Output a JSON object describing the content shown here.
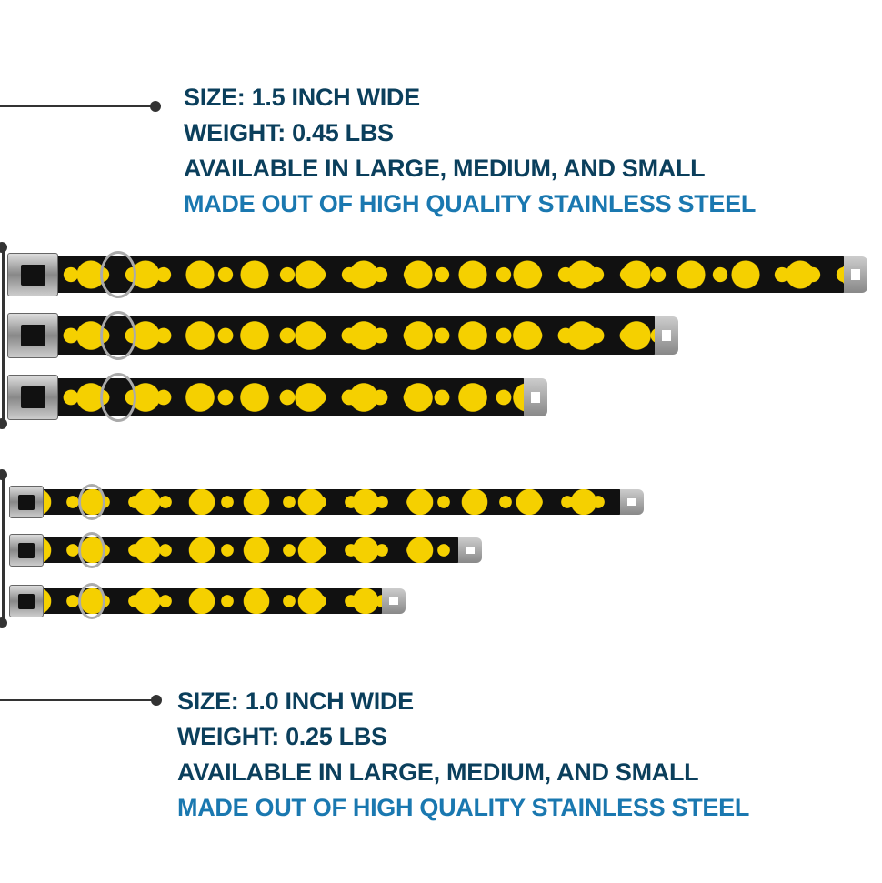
{
  "wide_collar": {
    "size": "SIZE: 1.5 INCH WIDE",
    "weight": "WEIGHT: 0.45 LBS",
    "available": "AVAILABLE IN LARGE, MEDIUM, AND SMALL",
    "material": "MADE OUT OF HIGH QUALITY STAINLESS STEEL"
  },
  "narrow_collar": {
    "size": "SIZE: 1.0 INCH WIDE",
    "weight": "WEIGHT: 0.25 LBS",
    "available": "AVAILABLE IN LARGE, MEDIUM, AND SMALL",
    "material": "MADE OUT OF HIGH QUALITY STAINLESS STEEL"
  },
  "colors": {
    "heading": "#0b3f5c",
    "accent": "#1a78b0",
    "collar_print": "#f5d000",
    "collar_base": "#111111"
  }
}
